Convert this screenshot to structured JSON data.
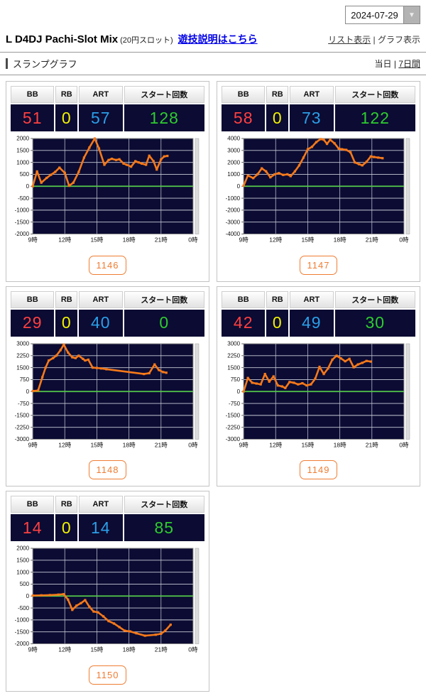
{
  "header": {
    "date_value": "2024-07-29",
    "title": "L D4DJ Pachi-Slot Mix",
    "subtitle": "(20円スロット)",
    "info_link": "遊技説明はこちら",
    "view_list": "リスト表示",
    "view_sep": "|",
    "view_graph": "グラフ表示"
  },
  "section": {
    "title": "スランプグラフ",
    "today": "当日",
    "sep": "|",
    "week": "7日間"
  },
  "stats_headers": [
    "BB",
    "RB",
    "ART",
    "スタート回数"
  ],
  "machines": [
    {
      "number": "1146",
      "bb": "51",
      "rb": "0",
      "art": "57",
      "start": "128"
    },
    {
      "number": "1147",
      "bb": "58",
      "rb": "0",
      "art": "73",
      "start": "122"
    },
    {
      "number": "1148",
      "bb": "29",
      "rb": "0",
      "art": "40",
      "start": "0"
    },
    {
      "number": "1149",
      "bb": "42",
      "rb": "0",
      "art": "49",
      "start": "30"
    },
    {
      "number": "1150",
      "bb": "14",
      "rb": "0",
      "art": "14",
      "start": "85"
    }
  ],
  "x_axis": {
    "ticks": [
      "9時",
      "12時",
      "15時",
      "18時",
      "21時",
      "0時"
    ],
    "hours": [
      9,
      12,
      15,
      18,
      21,
      24
    ]
  },
  "chart_data": [
    {
      "type": "line",
      "machine": "1146",
      "ylim": [
        -2000,
        2000
      ],
      "y_step": 500,
      "series": [
        {
          "name": "slump",
          "x": [
            9,
            9.4,
            9.8,
            10.3,
            10.7,
            11.1,
            11.5,
            12.0,
            12.4,
            12.8,
            13.3,
            13.8,
            14.3,
            14.8,
            15.2,
            15.7,
            16.1,
            16.4,
            16.8,
            17.1,
            17.5,
            17.8,
            18.2,
            18.6,
            18.9,
            19.2,
            19.6,
            19.9,
            20.3,
            20.6,
            21.0,
            21.3,
            21.6
          ],
          "y": [
            0,
            620,
            150,
            350,
            480,
            600,
            780,
            560,
            20,
            150,
            600,
            1200,
            1620,
            2000,
            1580,
            900,
            1100,
            1150,
            1100,
            1130,
            950,
            900,
            820,
            1050,
            1000,
            950,
            900,
            1280,
            1050,
            700,
            1120,
            1250,
            1270
          ]
        }
      ]
    },
    {
      "type": "line",
      "machine": "1147",
      "ylim": [
        -4000,
        4000
      ],
      "y_step": 1000,
      "series": [
        {
          "name": "slump",
          "x": [
            9,
            9.4,
            9.9,
            10.3,
            10.7,
            11.1,
            11.5,
            11.9,
            12.3,
            12.7,
            13.1,
            13.4,
            13.8,
            14.2,
            14.6,
            15.0,
            15.4,
            15.8,
            16.2,
            16.5,
            16.8,
            17.1,
            17.5,
            17.9,
            18.2,
            18.6,
            19.0,
            19.4,
            19.8,
            20.1,
            20.5,
            20.9,
            21.2,
            21.6,
            22.0
          ],
          "y": [
            50,
            900,
            680,
            1000,
            1500,
            1250,
            750,
            1000,
            1100,
            950,
            1000,
            850,
            1250,
            1750,
            2400,
            3100,
            3300,
            3700,
            3950,
            3900,
            3550,
            3900,
            3600,
            3150,
            3100,
            3050,
            2850,
            2000,
            1850,
            1750,
            2050,
            2500,
            2450,
            2400,
            2350
          ]
        }
      ]
    },
    {
      "type": "line",
      "machine": "1148",
      "ylim": [
        -3000,
        3000
      ],
      "y_step": 750,
      "series": [
        {
          "name": "slump",
          "x": [
            9,
            9.5,
            9.9,
            10.2,
            10.5,
            10.9,
            11.2,
            11.6,
            11.9,
            12.3,
            12.7,
            13.0,
            13.3,
            13.7,
            13.9,
            14.2,
            14.6,
            15.0,
            15.4,
            15.9,
            19.4,
            19.9,
            20.4,
            20.8,
            21.2,
            21.5
          ],
          "y": [
            30,
            60,
            900,
            1500,
            1950,
            2100,
            2250,
            2600,
            2950,
            2450,
            2150,
            2100,
            2250,
            2050,
            1950,
            2000,
            1500,
            1480,
            1450,
            1400,
            1100,
            1150,
            1700,
            1350,
            1220,
            1180
          ]
        }
      ]
    },
    {
      "type": "line",
      "machine": "1149",
      "ylim": [
        -3000,
        3000
      ],
      "y_step": 750,
      "series": [
        {
          "name": "slump",
          "x": [
            9,
            9.4,
            9.8,
            10.2,
            10.6,
            11.0,
            11.4,
            11.8,
            12.2,
            12.6,
            12.9,
            13.3,
            13.7,
            14.1,
            14.5,
            14.9,
            15.3,
            15.7,
            16.1,
            16.5,
            16.9,
            17.3,
            17.7,
            18.1,
            18.5,
            18.9,
            19.3,
            19.7,
            20.1,
            20.5,
            20.9
          ],
          "y": [
            0,
            850,
            550,
            500,
            450,
            1100,
            620,
            950,
            380,
            320,
            220,
            600,
            550,
            450,
            520,
            380,
            450,
            800,
            1550,
            1100,
            1450,
            2000,
            2250,
            2080,
            1900,
            2050,
            1520,
            1700,
            1800,
            1920,
            1880
          ]
        }
      ]
    },
    {
      "type": "line",
      "machine": "1150",
      "ylim": [
        -2000,
        2000
      ],
      "y_step": 500,
      "series": [
        {
          "name": "slump",
          "x": [
            9,
            9.8,
            10.6,
            11.4,
            11.9,
            12.3,
            12.7,
            13.1,
            13.5,
            13.9,
            14.3,
            14.7,
            15.1,
            15.6,
            16.1,
            16.6,
            17.1,
            17.6,
            18.1,
            18.7,
            19.5,
            20.5,
            21.0,
            21.4,
            21.9
          ],
          "y": [
            20,
            30,
            40,
            60,
            80,
            -150,
            -580,
            -400,
            -300,
            -170,
            -450,
            -650,
            -680,
            -850,
            -1050,
            -1150,
            -1300,
            -1450,
            -1480,
            -1560,
            -1660,
            -1620,
            -1580,
            -1450,
            -1200
          ]
        }
      ]
    }
  ],
  "colors": {
    "line": "#f5791a",
    "zero_line": "#55c94a",
    "plot_bg": "#0b0b33",
    "grid": "#c9ccd8",
    "bb": "#ff4040",
    "rb": "#f2f200",
    "art": "#2b9fe8",
    "start": "#2ecc2e",
    "badge": "#ef7d33",
    "link_blue": "#0000e6"
  }
}
